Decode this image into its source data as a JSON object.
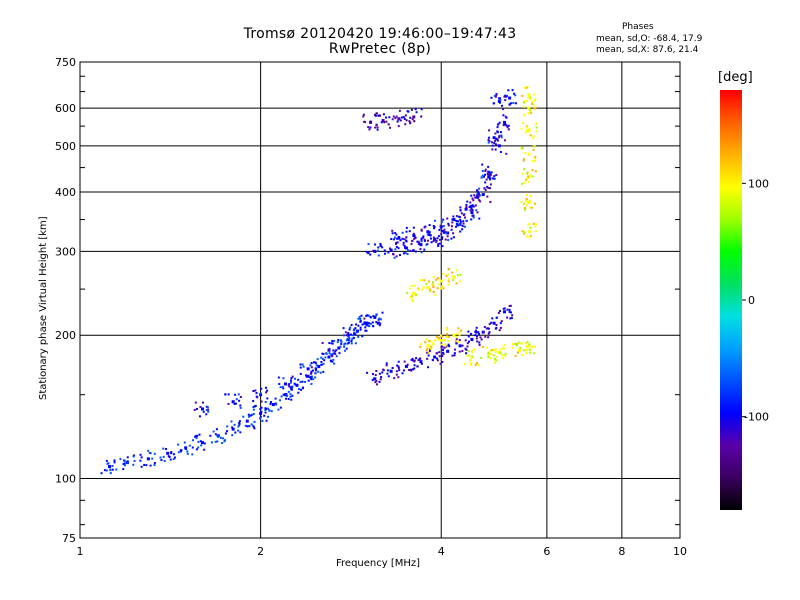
{
  "header": {
    "title": "Tromsø 20120420 19:46:00–19:47:43",
    "subtitle": "RwPretec (8p)",
    "stats_heading": "Phases",
    "stats_o": "mean, sd,O: -68.4, 17.9",
    "stats_x": "mean, sd,X:  87.6, 21.4"
  },
  "colors": {
    "colormap": [
      "#000000",
      "#3a0060",
      "#5a00a8",
      "#0000ff",
      "#0050ff",
      "#00a0ff",
      "#00e0e0",
      "#00e060",
      "#00ff00",
      "#a0ff00",
      "#ffff00",
      "#ffb000",
      "#ff6000",
      "#ff0000"
    ],
    "grid": "#000000"
  },
  "chart_data": {
    "type": "scatter",
    "xlabel": "Frequency [MHz]",
    "ylabel": "Stationary phase Virtual Height [km]",
    "x_scale": "log",
    "y_scale": "log",
    "xlim": [
      1,
      10
    ],
    "ylim": [
      75,
      750
    ],
    "x_ticks": [
      1,
      2,
      4,
      6,
      8,
      10
    ],
    "y_ticks": [
      75,
      100,
      200,
      300,
      400,
      500,
      600,
      750
    ],
    "grid": true,
    "colorbar": {
      "label": "[deg]",
      "range": [
        -180,
        180
      ],
      "ticks": [
        -100,
        0,
        100
      ]
    },
    "traces": [
      {
        "name": "",
        "phase_deg": -85,
        "points": [
          [
            1.12,
            106
          ],
          [
            1.2,
            108
          ],
          [
            1.3,
            110
          ],
          [
            1.4,
            113
          ],
          [
            1.5,
            116
          ],
          [
            1.6,
            119
          ],
          [
            1.7,
            123
          ],
          [
            1.8,
            127
          ],
          [
            1.9,
            132
          ],
          [
            2.0,
            137
          ],
          [
            2.1,
            143
          ],
          [
            2.2,
            150
          ],
          [
            2.3,
            157
          ],
          [
            2.4,
            164
          ],
          [
            2.5,
            172
          ],
          [
            2.6,
            180
          ],
          [
            2.7,
            188
          ],
          [
            2.8,
            196
          ],
          [
            2.9,
            204
          ],
          [
            3.0,
            212
          ]
        ]
      },
      {
        "name": "",
        "phase_deg": -95,
        "points": [
          [
            1.6,
            140
          ],
          [
            1.8,
            145
          ],
          [
            2.0,
            150
          ],
          [
            2.2,
            158
          ],
          [
            2.4,
            170
          ],
          [
            2.6,
            186
          ],
          [
            2.8,
            200
          ],
          [
            3.0,
            212
          ],
          [
            3.1,
            218
          ]
        ]
      },
      {
        "name": "",
        "phase_deg": -110,
        "points": [
          [
            3.1,
            162
          ],
          [
            3.3,
            168
          ],
          [
            3.5,
            172
          ],
          [
            3.7,
            176
          ],
          [
            3.9,
            180
          ],
          [
            4.1,
            185
          ],
          [
            4.3,
            190
          ],
          [
            4.5,
            196
          ],
          [
            4.7,
            203
          ],
          [
            4.9,
            212
          ],
          [
            5.1,
            224
          ]
        ]
      },
      {
        "name": "",
        "phase_deg": -100,
        "points": [
          [
            3.1,
            300
          ],
          [
            3.3,
            302
          ],
          [
            3.5,
            305
          ],
          [
            3.7,
            310
          ],
          [
            3.9,
            318
          ],
          [
            4.1,
            328
          ],
          [
            4.3,
            342
          ],
          [
            4.5,
            362
          ],
          [
            4.7,
            395
          ],
          [
            4.8,
            440
          ],
          [
            4.9,
            520
          ],
          [
            5.0,
            620
          ]
        ]
      },
      {
        "name": "",
        "phase_deg": -105,
        "points": [
          [
            3.4,
            320
          ],
          [
            3.6,
            324
          ],
          [
            3.8,
            330
          ],
          [
            4.0,
            338
          ],
          [
            4.2,
            350
          ],
          [
            4.4,
            368
          ],
          [
            4.6,
            392
          ],
          [
            4.8,
            430
          ],
          [
            5.0,
            500
          ],
          [
            5.1,
            560
          ],
          [
            5.2,
            630
          ]
        ]
      },
      {
        "name": "",
        "phase_deg": -120,
        "points": [
          [
            3.05,
            560
          ],
          [
            3.2,
            565
          ],
          [
            3.4,
            570
          ],
          [
            3.6,
            575
          ]
        ]
      },
      {
        "name": "",
        "phase_deg": 100,
        "points": [
          [
            3.6,
            245
          ],
          [
            3.8,
            252
          ],
          [
            4.0,
            260
          ],
          [
            4.2,
            265
          ]
        ]
      },
      {
        "name": "",
        "phase_deg": 110,
        "points": [
          [
            3.8,
            190
          ],
          [
            4.0,
            195
          ],
          [
            4.2,
            200
          ]
        ]
      },
      {
        "name": "",
        "phase_deg": 100,
        "points": [
          [
            5.6,
            330
          ],
          [
            5.6,
            380
          ],
          [
            5.6,
            430
          ],
          [
            5.6,
            480
          ],
          [
            5.6,
            540
          ],
          [
            5.6,
            600
          ],
          [
            5.6,
            640
          ]
        ]
      },
      {
        "name": "",
        "phase_deg": 90,
        "points": [
          [
            4.5,
            180
          ],
          [
            4.8,
            182
          ],
          [
            5.0,
            184
          ],
          [
            5.4,
            186
          ],
          [
            5.6,
            190
          ]
        ]
      }
    ]
  }
}
